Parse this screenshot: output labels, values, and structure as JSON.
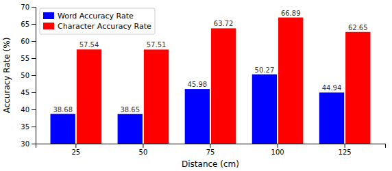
{
  "chart_data": {
    "type": "bar",
    "categories": [
      "25",
      "50",
      "75",
      "100",
      "125"
    ],
    "series": [
      {
        "name": "Word Accuracy Rate",
        "color": "#0000ff",
        "values": [
          38.68,
          38.65,
          45.98,
          50.27,
          44.94
        ]
      },
      {
        "name": "Character Accuracy Rate",
        "color": "#ff0000",
        "values": [
          57.54,
          57.51,
          63.72,
          66.89,
          62.65
        ]
      }
    ],
    "xlabel": "Distance (cm)",
    "ylabel": "Accuracy Rate (%)",
    "ylim": [
      30,
      70
    ],
    "yticks": [
      30,
      35,
      40,
      45,
      50,
      55,
      60,
      65,
      70
    ],
    "legend": "upper left",
    "data_labels": true,
    "grid": false
  }
}
